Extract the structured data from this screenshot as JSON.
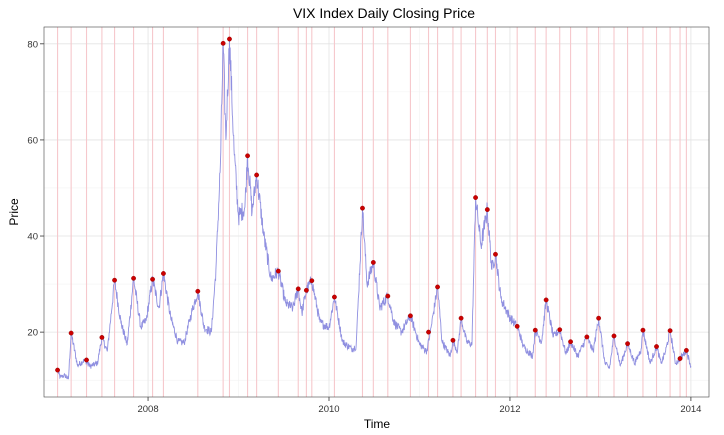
{
  "chart_data": {
    "type": "line",
    "title": "VIX Index Daily Closing Price",
    "xlabel": "Time",
    "ylabel": "Price",
    "xlim": [
      2006.85,
      2014.2
    ],
    "ylim": [
      6.5,
      83.5
    ],
    "x_ticks": [
      2008,
      2010,
      2012,
      2014
    ],
    "x_tick_labels": [
      "2008",
      "2010",
      "2012",
      "2014"
    ],
    "y_ticks": [
      20,
      40,
      60,
      80
    ],
    "y_tick_labels": [
      "20",
      "40",
      "60",
      "80"
    ],
    "grid": true,
    "legend": "none",
    "colors": {
      "line": "#8f8fe0",
      "peak_marker": "#cc0000",
      "vline": "#f6c8cc",
      "grid_major": "#e3e3e3",
      "grid_minor": "#f2f2f2"
    },
    "series": [
      {
        "values_anchor": [
          [
            2007.0,
            12.1
          ],
          [
            2007.03,
            10.6
          ],
          [
            2007.08,
            11.0
          ],
          [
            2007.12,
            10.2
          ],
          [
            2007.15,
            19.8
          ],
          [
            2007.22,
            13.1
          ],
          [
            2007.3,
            14.2
          ],
          [
            2007.36,
            12.9
          ],
          [
            2007.44,
            13.5
          ],
          [
            2007.49,
            18.9
          ],
          [
            2007.55,
            16.0
          ],
          [
            2007.63,
            30.8
          ],
          [
            2007.7,
            22.0
          ],
          [
            2007.77,
            17.4
          ],
          [
            2007.84,
            31.2
          ],
          [
            2007.92,
            21.0
          ],
          [
            2007.98,
            22.5
          ],
          [
            2008.05,
            31.0
          ],
          [
            2008.12,
            25.0
          ],
          [
            2008.17,
            32.2
          ],
          [
            2008.25,
            23.0
          ],
          [
            2008.33,
            18.0
          ],
          [
            2008.4,
            17.8
          ],
          [
            2008.48,
            24.0
          ],
          [
            2008.55,
            28.5
          ],
          [
            2008.62,
            21.0
          ],
          [
            2008.7,
            20.0
          ],
          [
            2008.75,
            33.0
          ],
          [
            2008.8,
            55.0
          ],
          [
            2008.83,
            80.1
          ],
          [
            2008.86,
            60.0
          ],
          [
            2008.9,
            81.0
          ],
          [
            2008.95,
            58.0
          ],
          [
            2009.0,
            44.0
          ],
          [
            2009.07,
            46.0
          ],
          [
            2009.1,
            56.7
          ],
          [
            2009.15,
            45.0
          ],
          [
            2009.2,
            52.7
          ],
          [
            2009.28,
            40.0
          ],
          [
            2009.36,
            31.0
          ],
          [
            2009.44,
            32.7
          ],
          [
            2009.52,
            26.0
          ],
          [
            2009.6,
            25.0
          ],
          [
            2009.66,
            29.0
          ],
          [
            2009.7,
            24.0
          ],
          [
            2009.75,
            28.7
          ],
          [
            2009.81,
            30.7
          ],
          [
            2009.9,
            22.0
          ],
          [
            2010.0,
            21.0
          ],
          [
            2010.06,
            27.3
          ],
          [
            2010.15,
            18.0
          ],
          [
            2010.25,
            16.5
          ],
          [
            2010.3,
            17.0
          ],
          [
            2010.37,
            45.8
          ],
          [
            2010.42,
            30.0
          ],
          [
            2010.49,
            34.5
          ],
          [
            2010.56,
            25.0
          ],
          [
            2010.65,
            27.5
          ],
          [
            2010.72,
            22.0
          ],
          [
            2010.8,
            20.0
          ],
          [
            2010.9,
            23.4
          ],
          [
            2011.0,
            17.5
          ],
          [
            2011.08,
            16.0
          ],
          [
            2011.12,
            20.0
          ],
          [
            2011.2,
            29.4
          ],
          [
            2011.25,
            18.0
          ],
          [
            2011.34,
            15.0
          ],
          [
            2011.37,
            18.3
          ],
          [
            2011.42,
            16.0
          ],
          [
            2011.46,
            22.9
          ],
          [
            2011.52,
            18.0
          ],
          [
            2011.58,
            17.5
          ],
          [
            2011.62,
            48.0
          ],
          [
            2011.68,
            38.0
          ],
          [
            2011.75,
            45.5
          ],
          [
            2011.8,
            33.0
          ],
          [
            2011.84,
            36.2
          ],
          [
            2011.9,
            27.0
          ],
          [
            2012.0,
            23.0
          ],
          [
            2012.08,
            21.2
          ],
          [
            2012.15,
            17.0
          ],
          [
            2012.25,
            15.0
          ],
          [
            2012.28,
            20.4
          ],
          [
            2012.35,
            18.0
          ],
          [
            2012.4,
            26.7
          ],
          [
            2012.48,
            19.0
          ],
          [
            2012.55,
            20.5
          ],
          [
            2012.62,
            15.5
          ],
          [
            2012.67,
            18.0
          ],
          [
            2012.75,
            15.0
          ],
          [
            2012.85,
            19.0
          ],
          [
            2012.92,
            16.0
          ],
          [
            2012.98,
            22.9
          ],
          [
            2013.05,
            13.5
          ],
          [
            2013.1,
            12.5
          ],
          [
            2013.15,
            19.2
          ],
          [
            2013.22,
            13.0
          ],
          [
            2013.3,
            17.6
          ],
          [
            2013.38,
            13.5
          ],
          [
            2013.45,
            16.5
          ],
          [
            2013.47,
            20.4
          ],
          [
            2013.55,
            13.5
          ],
          [
            2013.62,
            17.0
          ],
          [
            2013.67,
            13.5
          ],
          [
            2013.72,
            16.0
          ],
          [
            2013.77,
            20.3
          ],
          [
            2013.83,
            13.5
          ],
          [
            2013.88,
            14.5
          ],
          [
            2013.95,
            16.2
          ],
          [
            2014.0,
            12.9
          ]
        ]
      }
    ],
    "peaks": [
      [
        2007.0,
        12.1
      ],
      [
        2007.15,
        19.8
      ],
      [
        2007.32,
        14.2
      ],
      [
        2007.49,
        18.9
      ],
      [
        2007.63,
        30.8
      ],
      [
        2007.84,
        31.2
      ],
      [
        2008.05,
        31.0
      ],
      [
        2008.17,
        32.2
      ],
      [
        2008.55,
        28.5
      ],
      [
        2008.83,
        80.1
      ],
      [
        2008.9,
        81.0
      ],
      [
        2009.1,
        56.7
      ],
      [
        2009.2,
        52.7
      ],
      [
        2009.44,
        32.7
      ],
      [
        2009.66,
        29.0
      ],
      [
        2009.75,
        28.7
      ],
      [
        2009.81,
        30.7
      ],
      [
        2010.06,
        27.3
      ],
      [
        2010.37,
        45.8
      ],
      [
        2010.49,
        34.5
      ],
      [
        2010.65,
        27.5
      ],
      [
        2010.9,
        23.4
      ],
      [
        2011.1,
        20.0
      ],
      [
        2011.2,
        29.4
      ],
      [
        2011.37,
        18.3
      ],
      [
        2011.46,
        22.9
      ],
      [
        2011.62,
        48.0
      ],
      [
        2011.75,
        45.5
      ],
      [
        2011.84,
        36.2
      ],
      [
        2012.08,
        21.2
      ],
      [
        2012.28,
        20.4
      ],
      [
        2012.4,
        26.7
      ],
      [
        2012.55,
        20.5
      ],
      [
        2012.67,
        18.0
      ],
      [
        2012.85,
        19.0
      ],
      [
        2012.98,
        22.9
      ],
      [
        2013.15,
        19.2
      ],
      [
        2013.3,
        17.6
      ],
      [
        2013.47,
        20.4
      ],
      [
        2013.62,
        17.0
      ],
      [
        2013.77,
        20.3
      ],
      [
        2013.88,
        14.5
      ],
      [
        2013.95,
        16.2
      ]
    ],
    "vlines": [
      2007.0,
      2007.15,
      2007.32,
      2007.49,
      2007.63,
      2007.84,
      2008.05,
      2008.17,
      2008.55,
      2008.83,
      2008.9,
      2009.1,
      2009.2,
      2009.44,
      2009.66,
      2009.75,
      2009.81,
      2010.06,
      2010.37,
      2010.49,
      2010.65,
      2010.9,
      2011.1,
      2011.2,
      2011.37,
      2011.46,
      2011.62,
      2011.75,
      2011.84,
      2012.08,
      2012.28,
      2012.4,
      2012.55,
      2012.67,
      2012.85,
      2012.98,
      2013.15,
      2013.3,
      2013.47,
      2013.62,
      2013.77,
      2013.88,
      2013.95
    ]
  }
}
